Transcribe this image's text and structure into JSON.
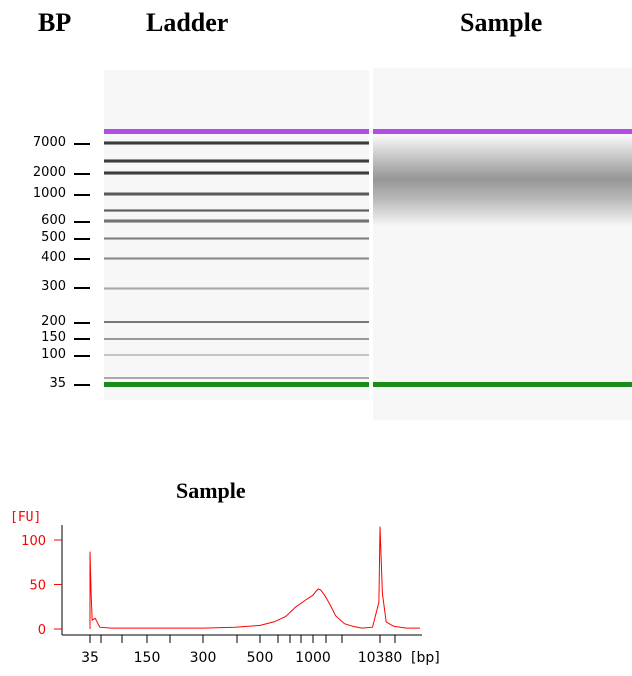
{
  "headers": {
    "bp": "BP",
    "ladder": "Ladder",
    "sample": "Sample"
  },
  "gel": {
    "bp_labels": [
      "7000",
      "2000",
      "1000",
      "600",
      "500",
      "400",
      "300",
      "200",
      "150",
      "100",
      "35"
    ],
    "upper_marker_color": "#b14ee6",
    "lower_marker_color": "#1a8c1a"
  },
  "chart_data": {
    "type": "line",
    "title": "Sample",
    "ylabel": "[FU]",
    "xlabel": "[bp]",
    "x_tick_labels": [
      "35",
      "150",
      "300",
      "500",
      "1000",
      "10380"
    ],
    "y_ticks": [
      0,
      50,
      100
    ],
    "ylim": [
      -5,
      120
    ],
    "line_color": "#ff0000",
    "series": [
      {
        "x": [
          35,
          35,
          36,
          37,
          40,
          45,
          60,
          100,
          150,
          200,
          300,
          400,
          500,
          600,
          700,
          800,
          900,
          1000,
          1100,
          1200,
          1300,
          1500,
          1800,
          2200,
          3000,
          4000,
          5500,
          8000,
          10000,
          10380,
          10800,
          11500,
          13000,
          16000,
          20000
        ],
        "y": [
          0,
          87,
          40,
          10,
          12,
          2,
          1,
          1,
          1,
          1,
          1,
          2,
          4,
          8,
          14,
          25,
          32,
          38,
          42,
          45,
          44,
          38,
          28,
          15,
          6,
          3,
          1,
          2,
          30,
          115,
          40,
          8,
          3,
          1,
          1
        ]
      }
    ]
  }
}
